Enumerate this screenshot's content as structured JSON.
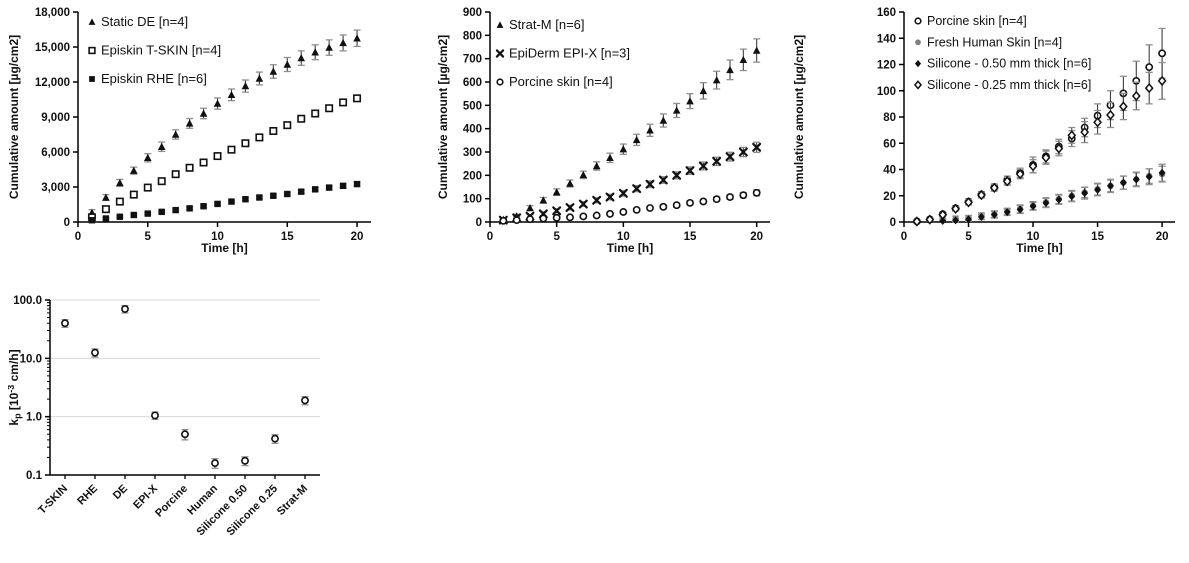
{
  "figure": {
    "background": "#ffffff",
    "axis_color": "#000000",
    "grid_color": "#d9d9d9",
    "errorbar_line_color": "#3f3f3f",
    "errorbar_cap_color": "#8f8f8f",
    "gray_series_color": "#808080"
  },
  "chart_data": [
    {
      "id": "cumulative-episkin",
      "type": "scatter",
      "title": "",
      "xlabel": "Time [h]",
      "ylabel": "Cumulative amount [µg/cm2]",
      "xlim": [
        0,
        21
      ],
      "ylim": [
        0,
        18000
      ],
      "xticks": [
        0,
        5,
        10,
        15,
        20
      ],
      "yticks": [
        0,
        3000,
        6000,
        9000,
        12000,
        15000,
        18000
      ],
      "ytick_labels": [
        "0",
        "3,000",
        "6,000",
        "9,000",
        "12,000",
        "15,000",
        "18,000"
      ],
      "grid": false,
      "legend_position": "inside-top-left",
      "x": [
        1,
        2,
        3,
        4,
        5,
        6,
        7,
        8,
        9,
        10,
        11,
        12,
        13,
        14,
        15,
        16,
        17,
        18,
        19,
        20
      ],
      "series": [
        {
          "name": "Static DE [n=4]",
          "marker": "triangle-filled",
          "color": "#111111",
          "values": [
            800,
            2100,
            3350,
            4400,
            5500,
            6450,
            7500,
            8450,
            9300,
            10150,
            10900,
            11650,
            12300,
            12900,
            13500,
            14050,
            14550,
            14950,
            15350,
            15750
          ],
          "errors": [
            250,
            250,
            300,
            300,
            350,
            400,
            400,
            420,
            450,
            480,
            500,
            520,
            550,
            580,
            600,
            620,
            640,
            660,
            680,
            700
          ]
        },
        {
          "name": "Episkin T-SKIN [n=4]",
          "marker": "square-open",
          "color": "#111111",
          "values": [
            400,
            1100,
            1750,
            2350,
            2950,
            3500,
            4100,
            4650,
            5100,
            5650,
            6200,
            6750,
            7250,
            7800,
            8300,
            8850,
            9300,
            9750,
            10250,
            10600
          ],
          "errors": [
            100,
            120,
            130,
            140,
            150,
            160,
            160,
            170,
            170,
            180,
            180,
            190,
            190,
            200,
            200,
            210,
            210,
            220,
            230,
            240
          ]
        },
        {
          "name": "Episkin RHE [n=6]",
          "marker": "square-filled",
          "color": "#111111",
          "values": [
            150,
            300,
            450,
            600,
            720,
            870,
            1020,
            1170,
            1350,
            1550,
            1750,
            1950,
            2100,
            2250,
            2400,
            2600,
            2800,
            2950,
            3100,
            3250
          ],
          "errors": [
            60,
            70,
            80,
            90,
            90,
            100,
            100,
            110,
            110,
            120,
            120,
            130,
            130,
            140,
            140,
            150,
            150,
            160,
            160,
            170
          ]
        }
      ]
    },
    {
      "id": "cumulative-stratm",
      "type": "scatter",
      "title": "",
      "xlabel": "Time [h]",
      "ylabel": "Cumulative amount [µg/cm2]",
      "xlim": [
        0,
        21
      ],
      "ylim": [
        0,
        900
      ],
      "xticks": [
        0,
        5,
        10,
        15,
        20
      ],
      "yticks": [
        0,
        100,
        200,
        300,
        400,
        500,
        600,
        700,
        800,
        900
      ],
      "ytick_labels": [
        "0",
        "100",
        "200",
        "300",
        "400",
        "500",
        "600",
        "700",
        "800",
        "900"
      ],
      "grid": false,
      "legend_position": "inside-top-left",
      "x": [
        1,
        2,
        3,
        4,
        5,
        6,
        7,
        8,
        9,
        10,
        11,
        12,
        13,
        14,
        15,
        16,
        17,
        18,
        19,
        20
      ],
      "series": [
        {
          "name": "Strat-M [n=6]",
          "marker": "triangle-filled",
          "color": "#111111",
          "values": [
            10,
            25,
            60,
            93,
            128,
            165,
            202,
            240,
            275,
            312,
            352,
            393,
            435,
            478,
            518,
            562,
            608,
            652,
            695,
            735
          ],
          "errors": [
            5,
            8,
            10,
            12,
            14,
            15,
            16,
            18,
            20,
            22,
            24,
            26,
            28,
            30,
            32,
            35,
            38,
            42,
            46,
            50
          ]
        },
        {
          "name": "EpiDerm EPI-X [n=3]",
          "marker": "x-bold",
          "color": "#111111",
          "values": [
            8,
            18,
            25,
            35,
            48,
            62,
            77,
            93,
            107,
            123,
            143,
            162,
            180,
            200,
            220,
            240,
            260,
            280,
            300,
            320
          ],
          "errors": [
            4,
            6,
            7,
            8,
            9,
            10,
            10,
            11,
            12,
            12,
            13,
            14,
            14,
            15,
            16,
            17,
            18,
            19,
            20,
            22
          ]
        },
        {
          "name": "Porcine skin [n=4]",
          "marker": "circle-open",
          "color": "#111111",
          "values": [
            5,
            8,
            12,
            15,
            18,
            20,
            24,
            28,
            35,
            43,
            52,
            60,
            65,
            72,
            82,
            88,
            98,
            107,
            115,
            125
          ],
          "errors": [
            2,
            3,
            3,
            4,
            4,
            5,
            5,
            5,
            6,
            6,
            7,
            7,
            8,
            8,
            9,
            9,
            10,
            10,
            11,
            13
          ]
        }
      ]
    },
    {
      "id": "cumulative-silicone",
      "type": "scatter",
      "title": "",
      "xlabel": "Time [h]",
      "ylabel": "Cumulative amount [µg/cm2]",
      "xlim": [
        0,
        21
      ],
      "ylim": [
        0,
        160
      ],
      "xticks": [
        0,
        5,
        10,
        15,
        20
      ],
      "yticks": [
        0,
        20,
        40,
        60,
        80,
        100,
        120,
        140,
        160
      ],
      "ytick_labels": [
        "0",
        "20",
        "40",
        "60",
        "80",
        "100",
        "120",
        "140",
        "160"
      ],
      "grid": false,
      "legend_position": "inside-top-left",
      "x": [
        1,
        2,
        3,
        4,
        5,
        6,
        7,
        8,
        9,
        10,
        11,
        12,
        13,
        14,
        15,
        16,
        17,
        18,
        19,
        20
      ],
      "series": [
        {
          "name": "Porcine skin [n=4]",
          "marker": "circle-open",
          "color": "#111111",
          "values": [
            0.5,
            2,
            6,
            10.5,
            15.5,
            21,
            26.5,
            32,
            37.5,
            43.5,
            50,
            57.5,
            63.5,
            72,
            81,
            89,
            98,
            107.5,
            118,
            128.5
          ],
          "errors": [
            0.5,
            0.8,
            1.2,
            1.8,
            2,
            2.2,
            2.5,
            3,
            3.5,
            6,
            5,
            5.5,
            6,
            7,
            9,
            11,
            13,
            15,
            17,
            19
          ]
        },
        {
          "name": "Fresh Human Skin [n=4]",
          "marker": "circle-filled",
          "color": "#808080",
          "values": [
            0.5,
            2,
            1.5,
            2.5,
            3,
            4.5,
            6,
            8,
            10,
            12.5,
            15,
            17.5,
            20,
            22.5,
            25,
            27.5,
            30,
            32.5,
            35,
            36.5
          ],
          "errors": [
            0.5,
            1,
            1.5,
            2,
            2,
            2.5,
            2.5,
            2.5,
            3,
            3,
            3.5,
            3.5,
            4,
            4,
            4.5,
            4.5,
            5,
            5,
            5.5,
            6
          ]
        },
        {
          "name": "Silicone - 0.50 mm thick [n=6]",
          "marker": "diamond-filled",
          "color": "#111111",
          "values": [
            0.3,
            1.5,
            0.8,
            1.2,
            2,
            3.8,
            5.5,
            7.5,
            9.5,
            12,
            14.5,
            17,
            19.5,
            22,
            24.5,
            27.5,
            30,
            32.5,
            34.5,
            37.5
          ],
          "errors": [
            0.3,
            0.8,
            0.8,
            1,
            1.5,
            2,
            2.5,
            2.5,
            3,
            3,
            3.5,
            3.5,
            4,
            4.5,
            4.5,
            5,
            5,
            5.5,
            6,
            6.5
          ]
        },
        {
          "name": "Silicone - 0.25 mm thick [n=6]",
          "marker": "diamond-open",
          "color": "#111111",
          "values": [
            0.4,
            1.8,
            5.5,
            10,
            15,
            20.5,
            26,
            31,
            36.5,
            42.5,
            49,
            56,
            66,
            68.5,
            76,
            81.5,
            88,
            96,
            102,
            107.5
          ],
          "errors": [
            0.4,
            0.7,
            1,
            1.6,
            2,
            2.2,
            2.5,
            3,
            3.5,
            5,
            5,
            5.5,
            6,
            8,
            9,
            9.5,
            10,
            10.5,
            12,
            14
          ]
        }
      ]
    },
    {
      "id": "kp-log",
      "type": "scatter-log",
      "title": "",
      "xlabel": "",
      "ylabel": "kp [10-3 cm/h]",
      "ylabel_parts": [
        {
          "t": "k"
        },
        {
          "t": "p",
          "style": "sub"
        },
        {
          "t": " [10"
        },
        {
          "t": "-3",
          "style": "sup"
        },
        {
          "t": " cm/h]"
        }
      ],
      "yscale": "log",
      "ylim": [
        0.1,
        100
      ],
      "yticks": [
        0.1,
        1,
        10,
        100
      ],
      "ytick_labels": [
        "0.1",
        "1.0",
        "10.0",
        "100.0"
      ],
      "grid": true,
      "legend_position": "none",
      "categories": [
        "T-SKIN",
        "RHE",
        "DE",
        "EPI-X",
        "Porcine",
        "Human",
        "Silicone 0.50",
        "Silicone 0.25",
        "Strat-M"
      ],
      "series": [
        {
          "name": "kp",
          "marker": "circle-open",
          "color": "#111111",
          "values": [
            40,
            12.5,
            70,
            1.05,
            0.5,
            0.16,
            0.175,
            0.42,
            1.9
          ],
          "errors": [
            6,
            2,
            10,
            0.15,
            0.1,
            0.03,
            0.03,
            0.07,
            0.3
          ]
        }
      ]
    }
  ]
}
